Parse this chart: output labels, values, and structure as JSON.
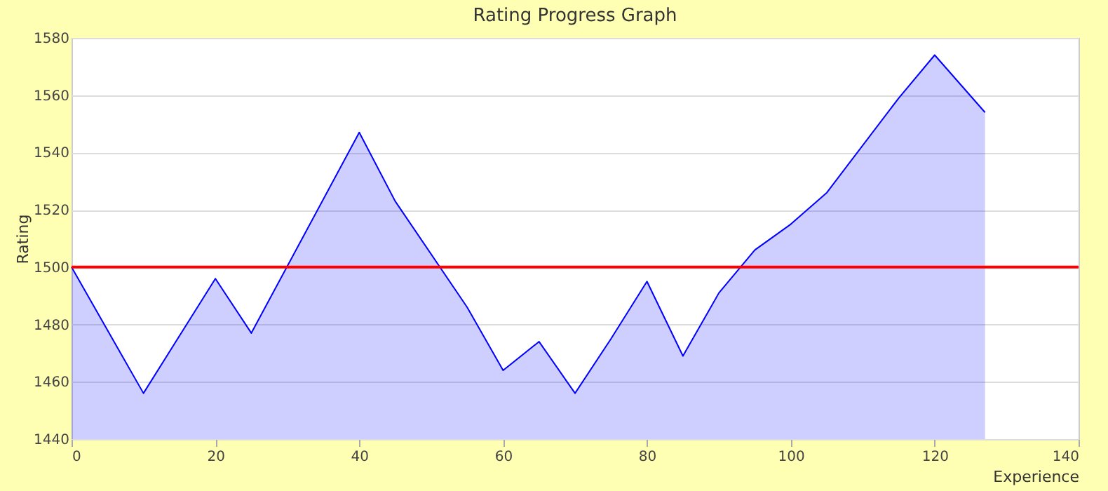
{
  "chart_data": {
    "type": "area",
    "title": "Rating Progress Graph",
    "xlabel": "Experience",
    "ylabel": "Rating",
    "x": [
      0,
      10,
      20,
      25,
      40,
      45,
      55,
      60,
      65,
      70,
      75,
      80,
      85,
      90,
      95,
      100,
      105,
      115,
      120,
      127
    ],
    "series": [
      {
        "color": "#0000ff",
        "values": [
          1500,
          1456,
          1496,
          1477,
          1547,
          1523,
          1486,
          1464,
          1474,
          1456,
          1475,
          1495,
          1469,
          1491,
          1506,
          1515,
          1526,
          1559,
          1574,
          1554
        ]
      }
    ],
    "xlim": [
      0,
      140
    ],
    "xticks": [
      0,
      20,
      40,
      60,
      80,
      100,
      120,
      140
    ],
    "ylim": [
      1440,
      1580
    ],
    "yticks": [
      1440,
      1460,
      1480,
      1500,
      1520,
      1540,
      1560,
      1580
    ],
    "ref_lines": [
      {
        "axis": "y",
        "value": 1500,
        "color": "#ff0000"
      }
    ],
    "grid": "y"
  }
}
